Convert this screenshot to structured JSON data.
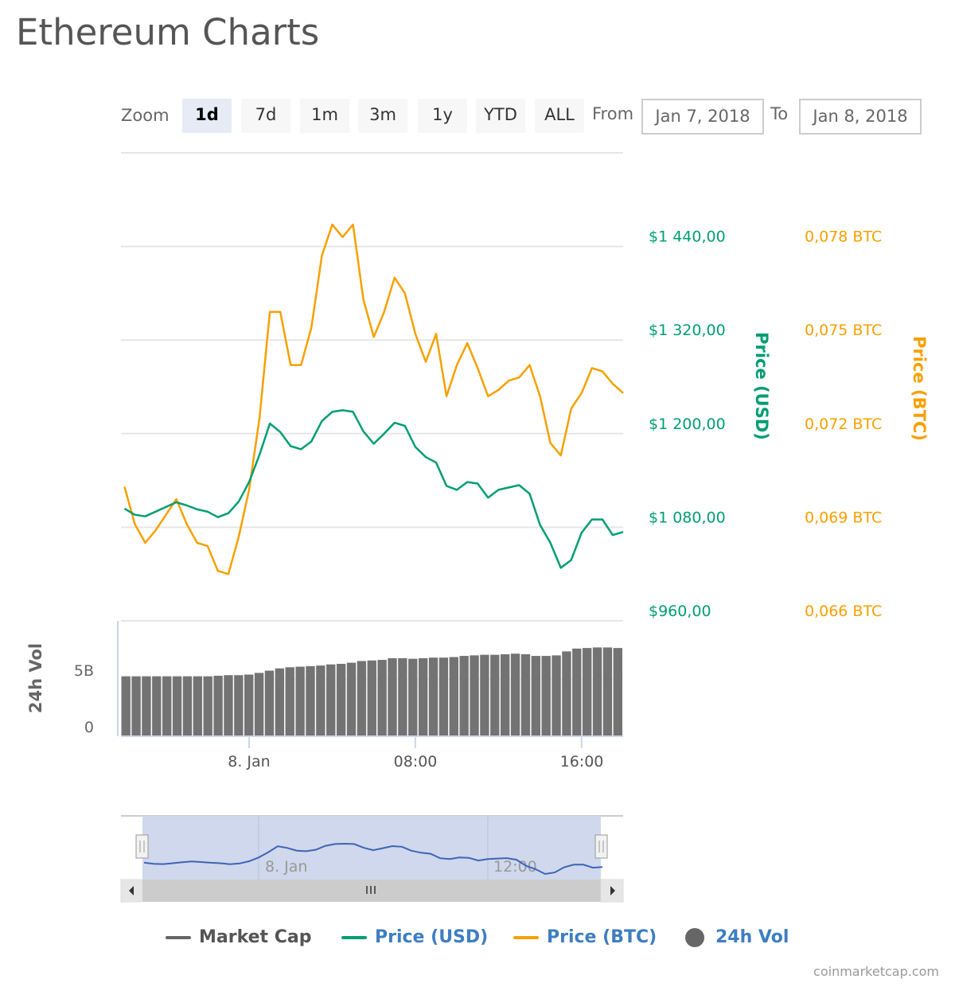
{
  "title": "Ethereum Charts",
  "toolbar": {
    "zoom_label": "Zoom",
    "buttons": [
      "1d",
      "7d",
      "1m",
      "3m",
      "1y",
      "YTD",
      "ALL"
    ],
    "selected": "1d",
    "from_label": "From",
    "from_value": "Jan 7, 2018",
    "to_label": "To",
    "to_value": "Jan 8, 2018"
  },
  "legend": {
    "items": [
      {
        "label": "Market Cap",
        "color": "#666666",
        "marker": "line"
      },
      {
        "label": "Price (USD)",
        "color": "#009e73",
        "marker": "line"
      },
      {
        "label": "Price (BTC)",
        "color": "#f7a000",
        "marker": "line"
      },
      {
        "label": "24h Vol",
        "color": "#666666",
        "marker": "circle"
      }
    ]
  },
  "credit": "coinmarketcap.com",
  "colors": {
    "usd": "#009e73",
    "btc": "#f7a000",
    "volume": "#737373",
    "navigator_line": "#3f63b5",
    "navigator_mask": "#ccd6eb"
  },
  "chart_data": {
    "type": "line",
    "x_tick_labels": [
      "8. Jan",
      "08:00",
      "16:00"
    ],
    "x_ticks": [
      "2018-01-08 00:00",
      "2018-01-08 08:00",
      "2018-01-08 16:00"
    ],
    "y_usd": {
      "title": "Price (USD)",
      "ticks": [
        "$960,00",
        "$1 080,00",
        "$1 200,00",
        "$1 320,00",
        "$1 440,00"
      ],
      "tick_values": [
        960,
        1080,
        1200,
        1320,
        1440
      ],
      "range": [
        960,
        1560
      ]
    },
    "y_btc": {
      "title": "Price (BTC)",
      "ticks": [
        "0,066 BTC",
        "0,069 BTC",
        "0,072 BTC",
        "0,075 BTC",
        "0,078 BTC"
      ],
      "tick_values": [
        0.066,
        0.069,
        0.072,
        0.075,
        0.078
      ],
      "range": [
        0.066,
        0.081
      ]
    },
    "y_vol": {
      "title": "24h Vol",
      "ticks": [
        "0",
        "5B"
      ],
      "tick_values": [
        0,
        5
      ],
      "unit": "billion USD",
      "range": [
        0,
        10.2
      ]
    },
    "grid": true,
    "x": [
      "2018-01-07 18:00",
      "2018-01-07 18:30",
      "2018-01-07 19:00",
      "2018-01-07 19:30",
      "2018-01-07 20:00",
      "2018-01-07 20:30",
      "2018-01-07 21:00",
      "2018-01-07 21:30",
      "2018-01-07 22:00",
      "2018-01-07 22:30",
      "2018-01-07 23:00",
      "2018-01-07 23:30",
      "2018-01-08 00:00",
      "2018-01-08 00:30",
      "2018-01-08 01:00",
      "2018-01-08 01:30",
      "2018-01-08 02:00",
      "2018-01-08 02:30",
      "2018-01-08 03:00",
      "2018-01-08 03:30",
      "2018-01-08 04:00",
      "2018-01-08 04:30",
      "2018-01-08 05:00",
      "2018-01-08 05:30",
      "2018-01-08 06:00",
      "2018-01-08 06:30",
      "2018-01-08 07:00",
      "2018-01-08 07:30",
      "2018-01-08 08:00",
      "2018-01-08 08:30",
      "2018-01-08 09:00",
      "2018-01-08 09:30",
      "2018-01-08 10:00",
      "2018-01-08 10:30",
      "2018-01-08 11:00",
      "2018-01-08 11:30",
      "2018-01-08 12:00",
      "2018-01-08 12:30",
      "2018-01-08 13:00",
      "2018-01-08 13:30",
      "2018-01-08 14:00",
      "2018-01-08 14:30",
      "2018-01-08 15:00",
      "2018-01-08 15:30",
      "2018-01-08 16:00",
      "2018-01-08 16:30",
      "2018-01-08 17:00",
      "2018-01-08 17:30",
      "2018-01-08 18:00"
    ],
    "series": [
      {
        "name": "Price (USD)",
        "axis": "usd",
        "values": [
          1104,
          1096,
          1094,
          1100,
          1106,
          1112,
          1108,
          1103,
          1100,
          1093,
          1098,
          1113,
          1138,
          1173,
          1213,
          1202,
          1184,
          1180,
          1190,
          1216,
          1228,
          1230,
          1228,
          1203,
          1187,
          1200,
          1214,
          1210,
          1183,
          1170,
          1163,
          1133,
          1128,
          1138,
          1136,
          1118,
          1128,
          1131,
          1134,
          1123,
          1083,
          1060,
          1028,
          1038,
          1073,
          1090,
          1090,
          1070,
          1074
        ]
      },
      {
        "name": "Price (BTC)",
        "axis": "btc",
        "values": [
          0.0703,
          0.0691,
          0.0685,
          0.0689,
          0.0694,
          0.0699,
          0.0691,
          0.0685,
          0.0684,
          0.0676,
          0.0675,
          0.0687,
          0.0702,
          0.0725,
          0.0759,
          0.0759,
          0.0742,
          0.0742,
          0.0754,
          0.0777,
          0.0787,
          0.0783,
          0.0787,
          0.0763,
          0.0751,
          0.0759,
          0.077,
          0.0765,
          0.0752,
          0.0743,
          0.0752,
          0.0732,
          0.0742,
          0.0749,
          0.0741,
          0.0732,
          0.0734,
          0.0737,
          0.0738,
          0.0742,
          0.0732,
          0.0717,
          0.0713,
          0.0728,
          0.0733,
          0.0741,
          0.074,
          0.0736,
          0.0733
        ]
      },
      {
        "name": "24h Vol",
        "axis": "vol",
        "type": "bar",
        "values": [
          5.3,
          5.3,
          5.3,
          5.3,
          5.3,
          5.3,
          5.3,
          5.3,
          5.3,
          5.35,
          5.4,
          5.4,
          5.45,
          5.6,
          5.8,
          6.0,
          6.1,
          6.15,
          6.2,
          6.25,
          6.35,
          6.4,
          6.5,
          6.65,
          6.7,
          6.75,
          6.9,
          6.9,
          6.85,
          6.9,
          6.95,
          6.95,
          7.0,
          7.1,
          7.15,
          7.2,
          7.2,
          7.25,
          7.3,
          7.25,
          7.1,
          7.1,
          7.15,
          7.5,
          7.75,
          7.8,
          7.85,
          7.85,
          7.8
        ]
      }
    ],
    "navigator": {
      "x_tick_labels": [
        "8. Jan",
        "12:00"
      ]
    }
  }
}
